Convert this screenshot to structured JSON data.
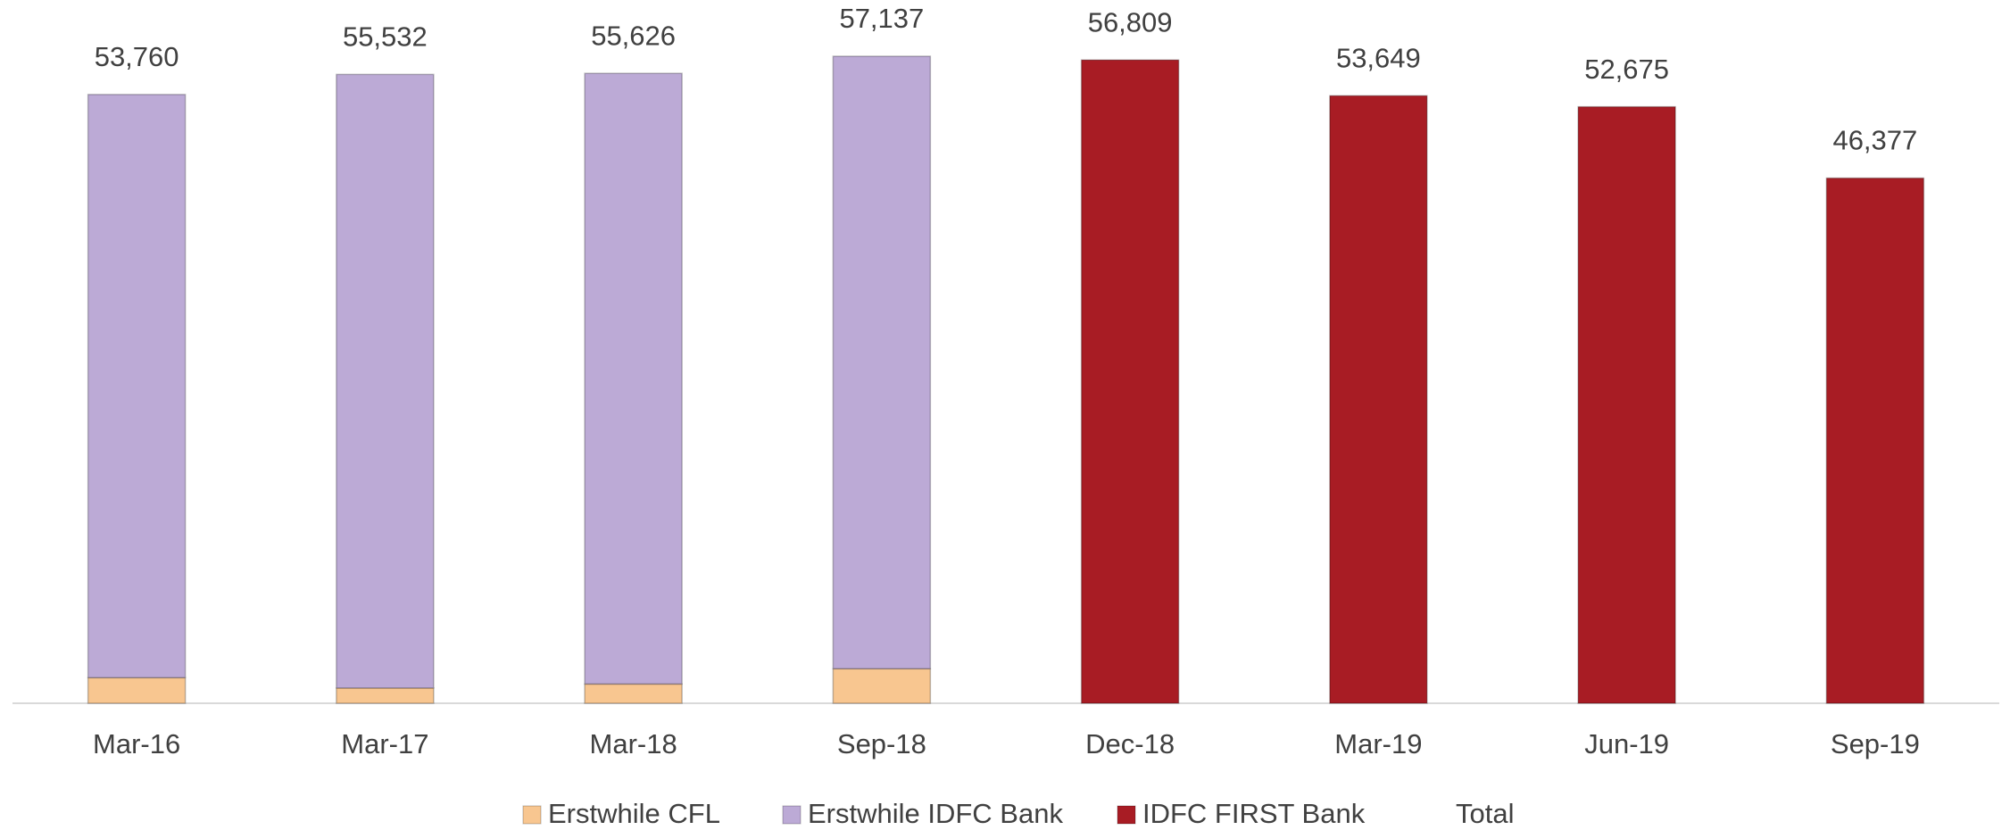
{
  "chart_data": {
    "type": "bar",
    "stacked": true,
    "categories": [
      "Mar-16",
      "Mar-17",
      "Mar-18",
      "Sep-18",
      "Dec-18",
      "Mar-19",
      "Jun-19",
      "Sep-19"
    ],
    "series": [
      {
        "name": "Erstwhile CFL",
        "color": "#f8c690",
        "values": [
          2260,
          1350,
          1700,
          3050,
          null,
          null,
          null,
          null
        ]
      },
      {
        "name": "Erstwhile IDFC Bank",
        "color": "#bcaad6",
        "values": [
          51500,
          54182,
          53926,
          54087,
          null,
          null,
          null,
          null
        ]
      },
      {
        "name": "IDFC FIRST Bank",
        "color": "#a81c24",
        "values": [
          null,
          null,
          null,
          null,
          56809,
          53649,
          52675,
          46377
        ]
      },
      {
        "name": "Total",
        "color": "none",
        "values": [
          53760,
          55532,
          55626,
          57137,
          56809,
          53649,
          52675,
          46377
        ],
        "value_labels": [
          "53,760",
          "55,532",
          "55,626",
          "57,137",
          "56,809",
          "53,649",
          "52,675",
          "46,377"
        ]
      }
    ],
    "legend": "bottom"
  }
}
